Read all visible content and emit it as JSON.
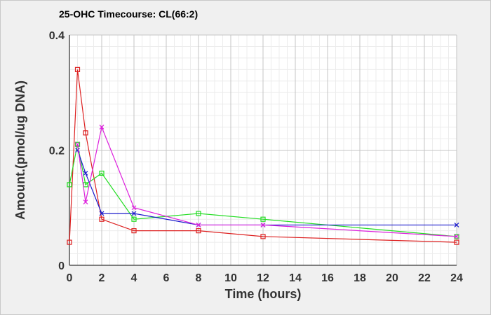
{
  "chart_data": {
    "type": "line",
    "title": "25-OHC Timecourse: CL(66:2)",
    "xlabel": "Time (hours)",
    "ylabel": "Amount.(pmol/ug DNA)",
    "xlim": [
      0,
      24
    ],
    "ylim": [
      0,
      0.4
    ],
    "xticks": [
      0,
      2,
      4,
      6,
      8,
      10,
      12,
      14,
      16,
      18,
      20,
      22,
      24
    ],
    "yticks": [
      0,
      0.2,
      0.4
    ],
    "ytick_labels": [
      "0",
      "0.2",
      "0.4"
    ],
    "grid": true,
    "series": [
      {
        "color": "#dd2020",
        "marker": "square",
        "x": [
          0,
          0.5,
          1,
          2,
          4,
          8,
          12,
          24
        ],
        "y": [
          0.04,
          0.34,
          0.23,
          0.08,
          0.06,
          0.06,
          0.05,
          0.04
        ]
      },
      {
        "color": "#22dd22",
        "marker": "square",
        "x": [
          0,
          0.5,
          1,
          2,
          4,
          8,
          12,
          24
        ],
        "y": [
          0.14,
          0.21,
          0.14,
          0.16,
          0.08,
          0.09,
          0.08,
          0.05
        ]
      },
      {
        "color": "#1a1acc",
        "marker": "x",
        "x": [
          0.5,
          1,
          2,
          4,
          8,
          12,
          24
        ],
        "y": [
          0.2,
          0.16,
          0.09,
          0.09,
          0.07,
          0.07,
          0.07
        ]
      },
      {
        "color": "#dd22dd",
        "marker": "x",
        "x": [
          0.5,
          1,
          2,
          4,
          8,
          12,
          24
        ],
        "y": [
          0.21,
          0.11,
          0.24,
          0.1,
          0.07,
          0.07,
          0.05
        ]
      }
    ]
  }
}
